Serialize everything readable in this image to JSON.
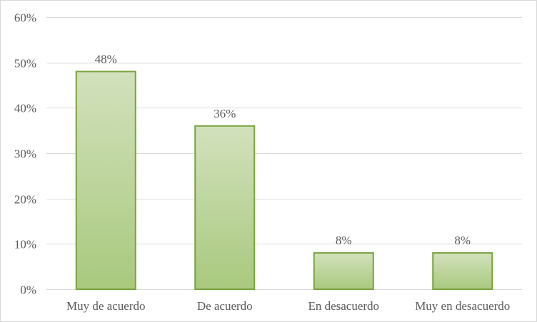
{
  "chart_data": {
    "type": "bar",
    "categories": [
      "Muy de acuerdo",
      "De acuerdo",
      "En  desacuerdo",
      "Muy en desacuerdo"
    ],
    "values": [
      48,
      36,
      8,
      8
    ],
    "data_labels": [
      "48%",
      "36%",
      "8%",
      "8%"
    ],
    "y_ticks": [
      0,
      10,
      20,
      30,
      40,
      50,
      60
    ],
    "y_tick_labels": [
      "0%",
      "10%",
      "20%",
      "30%",
      "40%",
      "50%",
      "60%"
    ],
    "ylim": [
      0,
      60
    ],
    "title": "",
    "xlabel": "",
    "ylabel": "",
    "grid": true,
    "legend": "none",
    "colors": {
      "bar_top": "#d2e1bc",
      "bar_bottom": "#a9c97e",
      "bar_border": "#77a33c",
      "grid": "#d9d9d9",
      "text": "#595959"
    }
  }
}
